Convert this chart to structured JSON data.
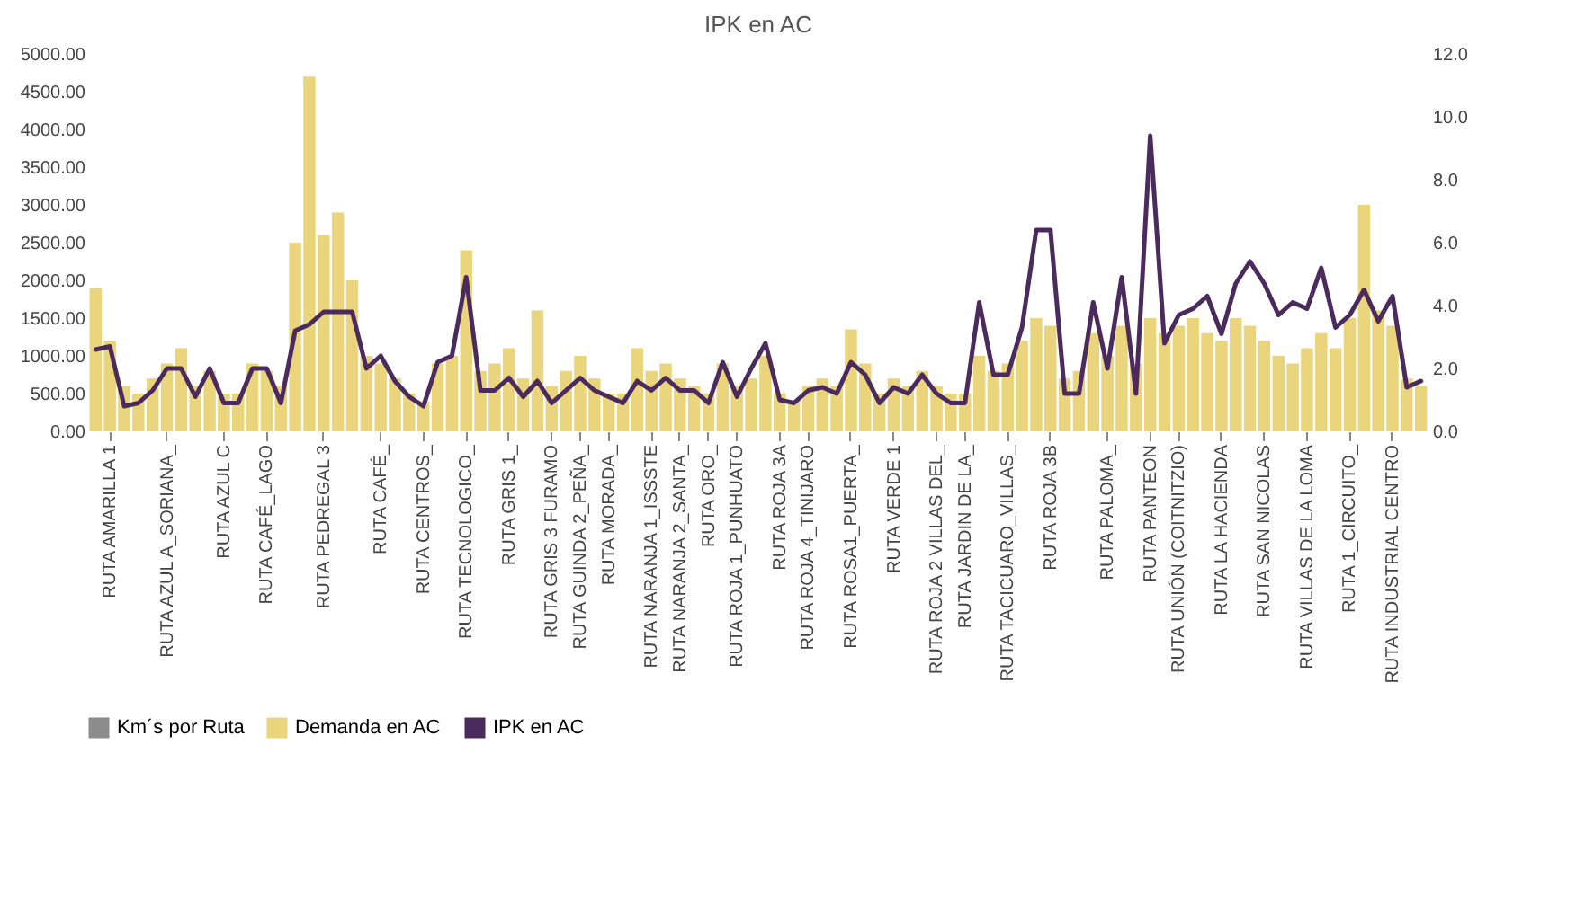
{
  "chart_data": {
    "type": "bar",
    "title": "IPK en AC",
    "categories": [
      null,
      "RUTA AMARILLA 1",
      null,
      null,
      null,
      "RUTA AZUL A_SORIANA_",
      null,
      null,
      null,
      "RUTA AZUL C",
      null,
      null,
      "RUTA CAFÉ_LAGO",
      null,
      null,
      null,
      "RUTA PEDREGAL 3",
      null,
      null,
      null,
      "RUTA CAFÉ_",
      null,
      null,
      "RUTA CENTROS_",
      null,
      null,
      "RUTA TECNOLOGICO_",
      null,
      null,
      "RUTA GRIS 1_",
      null,
      null,
      "RUTA GRIS 3 FURAMO",
      null,
      "RUTA GUINDA 2_PEÑA_",
      null,
      "RUTA MORADA_",
      null,
      null,
      "RUTA NARANJA 1_ISSSTE",
      null,
      "RUTA NARANJA 2_SANTA_",
      null,
      "RUTA ORO_",
      null,
      "RUTA ROJA 1_PUNHUATO",
      null,
      null,
      "RUTA ROJA 3A",
      null,
      "RUTA ROJA 4_TINIJARO",
      null,
      null,
      "RUTA ROSA1_PUERTA_",
      null,
      null,
      "RUTA VERDE 1",
      null,
      null,
      "RUTA ROJA 2 VILLAS DEL_",
      null,
      "RUTA JARDIN DE LA_",
      null,
      null,
      "RUTA TACICUARO_VILLAS_",
      null,
      null,
      "RUTA ROJA 3B",
      null,
      null,
      null,
      "RUTA PALOMA_",
      null,
      null,
      "RUTA PANTEON",
      null,
      "RUTA UNIÓN (COITNITZIO)",
      null,
      null,
      "RUTA LA HACIENDA",
      null,
      null,
      "RUTA SAN NICOLAS",
      null,
      null,
      "RUTA VILLAS DE LA LOMA",
      null,
      null,
      "RUTA 1_CIRCUITO_",
      null,
      null,
      "RUTA INDUSTRIAL CENTRO",
      null,
      null
    ],
    "series": [
      {
        "name": "Km´s por Ruta",
        "type": "bar",
        "color": "#8c8c8c",
        "values": [
          null,
          null,
          null,
          null,
          null,
          null,
          null,
          null,
          null,
          null,
          null,
          null,
          null,
          null,
          null,
          null,
          null,
          null,
          null,
          null,
          null,
          null,
          null,
          null,
          null,
          null,
          null,
          null,
          null,
          null,
          null,
          null,
          null,
          null,
          null,
          null,
          null,
          null,
          null,
          null,
          null,
          null,
          null,
          null,
          null,
          null,
          null,
          null,
          null,
          null,
          null,
          null,
          null,
          null,
          null,
          null,
          null,
          null,
          null,
          null,
          null,
          null,
          null,
          null,
          null,
          null,
          null,
          null,
          null,
          null,
          null,
          null,
          null,
          null,
          null,
          null,
          null,
          null,
          null,
          null,
          null,
          null,
          null,
          null,
          null,
          null,
          null,
          null,
          null,
          null,
          null,
          null,
          null,
          null
        ]
      },
      {
        "name": "Demanda en AC",
        "type": "bar",
        "color": "#ead47c",
        "values": [
          1900,
          1200,
          600,
          500,
          700,
          900,
          1100,
          600,
          800,
          500,
          500,
          900,
          800,
          600,
          2500,
          4700,
          2600,
          2900,
          2000,
          1000,
          900,
          700,
          500,
          400,
          900,
          1000,
          2400,
          800,
          900,
          1100,
          700,
          1600,
          600,
          800,
          1000,
          700,
          500,
          500,
          1100,
          800,
          900,
          700,
          600,
          500,
          900,
          600,
          700,
          1000,
          500,
          400,
          600,
          700,
          600,
          1350,
          900,
          500,
          700,
          600,
          800,
          600,
          500,
          500,
          1000,
          800,
          900,
          1200,
          1500,
          1400,
          700,
          800,
          1300,
          1000,
          1400,
          900,
          1500,
          1300,
          1400,
          1500,
          1300,
          1200,
          1500,
          1400,
          1200,
          1000,
          900,
          1100,
          1300,
          1100,
          1500,
          3000,
          1600,
          1400,
          700,
          600
        ]
      },
      {
        "name": "IPK en AC",
        "type": "line",
        "axis": "y2",
        "color": "#4b2a5e",
        "values": [
          2.6,
          2.7,
          0.8,
          0.9,
          1.3,
          2.0,
          2.0,
          1.1,
          2.0,
          0.9,
          0.9,
          2.0,
          2.0,
          0.9,
          3.2,
          3.4,
          3.8,
          3.8,
          3.8,
          2.0,
          2.4,
          1.6,
          1.1,
          0.8,
          2.2,
          2.4,
          4.9,
          1.3,
          1.3,
          1.7,
          1.1,
          1.6,
          0.9,
          1.3,
          1.7,
          1.3,
          1.1,
          0.9,
          1.6,
          1.3,
          1.7,
          1.3,
          1.3,
          0.9,
          2.2,
          1.1,
          2.0,
          2.8,
          1.0,
          0.9,
          1.3,
          1.4,
          1.2,
          2.2,
          1.8,
          0.9,
          1.4,
          1.2,
          1.8,
          1.2,
          0.9,
          0.9,
          4.1,
          1.8,
          1.8,
          3.3,
          6.4,
          6.4,
          1.2,
          1.2,
          4.1,
          2.0,
          4.9,
          1.2,
          9.4,
          2.8,
          3.7,
          3.9,
          4.3,
          3.1,
          4.7,
          5.4,
          4.7,
          3.7,
          4.1,
          3.9,
          5.2,
          3.3,
          3.7,
          4.5,
          3.5,
          4.3,
          1.4,
          1.6
        ]
      }
    ],
    "ylim": [
      0,
      5000
    ],
    "yticks": [
      {
        "value": 0,
        "label": "0.00"
      },
      {
        "value": 500,
        "label": "500.00"
      },
      {
        "value": 1000,
        "label": "1000.00"
      },
      {
        "value": 1500,
        "label": "1500.00"
      },
      {
        "value": 2000,
        "label": "2000.00"
      },
      {
        "value": 2500,
        "label": "2500.00"
      },
      {
        "value": 3000,
        "label": "3000.00"
      },
      {
        "value": 3500,
        "label": "3500.00"
      },
      {
        "value": 4000,
        "label": "4000.00"
      },
      {
        "value": 4500,
        "label": "4500.00"
      },
      {
        "value": 5000,
        "label": "5000.00"
      }
    ],
    "y2lim": [
      0,
      12
    ],
    "y2ticks": [
      {
        "value": 0,
        "label": "0.0"
      },
      {
        "value": 2,
        "label": "2.0"
      },
      {
        "value": 4,
        "label": "4.0"
      },
      {
        "value": 6,
        "label": "6.0"
      },
      {
        "value": 8,
        "label": "8.0"
      },
      {
        "value": 10,
        "label": "10.0"
      },
      {
        "value": 12,
        "label": "12.0"
      }
    ],
    "legend": "bottom",
    "grid": false
  }
}
